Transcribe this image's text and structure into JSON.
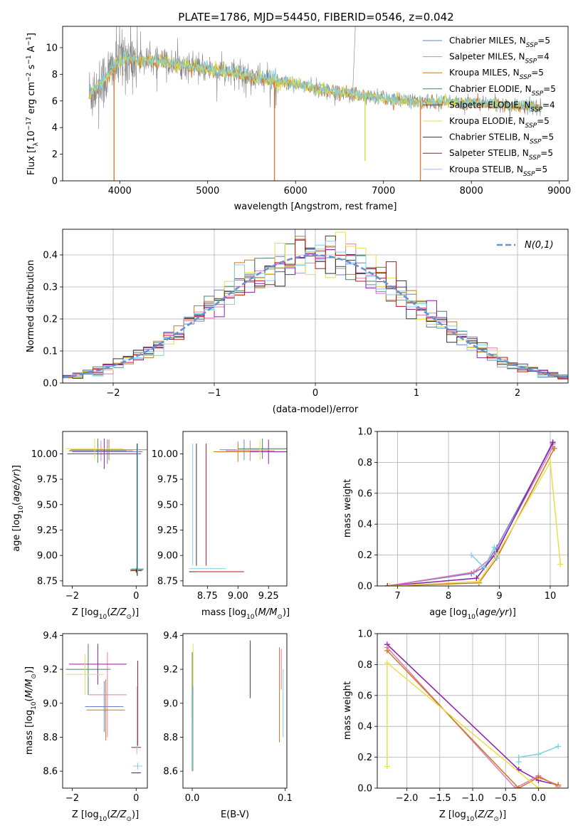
{
  "figure_title": "PLATE=1786, MJD=54450, FIBERID=0546, z=0.042",
  "legend_labels": [
    "Chabrier MILES, N_SSP=5",
    "Salpeter MILES, N_SSP=4",
    "Kroupa MILES, N_SSP=5",
    "Chabrier ELODIE, N_SSP=5",
    "Salpeter ELODIE, N_SSP=4",
    "Kroupa ELODIE, N_SSP=5",
    "Chabrier STELIB, N_SSP=5",
    "Salpeter STELIB, N_SSP=5",
    "Kroupa STELIB, N_SSP=5"
  ],
  "legend_base": [
    "Chabrier MILES, N",
    "Salpeter MILES, N",
    "Kroupa MILES, N",
    "Chabrier ELODIE, N",
    "Salpeter ELODIE, N",
    "Kroupa ELODIE, N",
    "Chabrier STELIB, N",
    "Salpeter STELIB, N",
    "Kroupa STELIB, N"
  ],
  "legend_sub": "SSP",
  "legend_counts": [
    "=5",
    "=4",
    "=5",
    "=5",
    "=4",
    "=5",
    "=5",
    "=5",
    "=5"
  ],
  "model_colors": [
    "#6a7fd3",
    "#e07ab8",
    "#c77a20",
    "#4f7f63",
    "#8b1fa8",
    "#e8e04a",
    "#333333",
    "#b8141a",
    "#7fd0e0"
  ],
  "panel_colors": {
    "data": "#808080",
    "fit_orange": "#e07a3a",
    "fit_cyan": "#7fd0e0",
    "fit_yellow": "#d0e040",
    "normal_curve": "#6a8fd3"
  },
  "chart_data": [
    {
      "type": "line",
      "panel": "spectrum",
      "xlabel": "wavelength [Angstrom, rest frame]",
      "ylabel": "Flux [f_λ 10^-17 erg cm^-2 s^-1 A^-1]",
      "xlim": [
        3350,
        9100
      ],
      "ylim": [
        0,
        11.6
      ],
      "xticks": [
        4000,
        5000,
        6000,
        7000,
        8000,
        9000
      ],
      "yticks": [
        0,
        2,
        4,
        6,
        8,
        10
      ],
      "legend_position": "top-right",
      "continuum": [
        [
          3650,
          6.5
        ],
        [
          3800,
          7.4
        ],
        [
          3950,
          8.6
        ],
        [
          4050,
          9.3
        ],
        [
          4200,
          9.1
        ],
        [
          4500,
          8.9
        ],
        [
          4800,
          8.6
        ],
        [
          5000,
          8.4
        ],
        [
          5300,
          8.1
        ],
        [
          5600,
          7.7
        ],
        [
          5900,
          7.3
        ],
        [
          6200,
          7.0
        ],
        [
          6500,
          6.6
        ],
        [
          6800,
          6.4
        ],
        [
          7100,
          6.1
        ],
        [
          7400,
          6.0
        ],
        [
          7800,
          5.9
        ],
        [
          8200,
          5.8
        ],
        [
          8600,
          5.6
        ],
        [
          8800,
          5.5
        ]
      ],
      "dips": [
        {
          "x": 3935,
          "y": 0.0,
          "series": "fit_orange"
        },
        {
          "x": 5760,
          "y": 0.0,
          "series": "fit_orange"
        },
        {
          "x": 6790,
          "y": 1.5,
          "series": "fit_yellow"
        },
        {
          "x": 7420,
          "y": 0.0,
          "series": "fit_orange"
        }
      ],
      "spike": {
        "x": 6650,
        "y": 11.6
      }
    },
    {
      "type": "line",
      "panel": "residual_histogram",
      "xlabel": "(data-model)/error",
      "ylabel": "Normed distribution",
      "xlim": [
        -2.5,
        2.5
      ],
      "ylim": [
        0,
        0.48
      ],
      "xticks": [
        -2,
        -1,
        0,
        1,
        2
      ],
      "yticks": [
        0.0,
        0.1,
        0.2,
        0.3,
        0.4
      ],
      "grid": true,
      "legend_label": "N(0,1)",
      "legend_position": "top-right",
      "bin_width": 0.1
    },
    {
      "type": "scatter",
      "panel": "age_vs_Z",
      "xlabel": "Z [log10(Z/Z⊙)]",
      "ylabel": "age [log10(age/yr)]",
      "xlim": [
        -2.3,
        0.35
      ],
      "ylim": [
        8.7,
        10.22
      ],
      "xticks": [
        -2,
        0
      ],
      "yticks": [
        8.75,
        9.0,
        9.25,
        9.5,
        9.75,
        10.0
      ],
      "points": [
        {
          "x": -0.9,
          "y": 10.02,
          "xerr": 1.1,
          "yerr": 0.12,
          "color": 0
        },
        {
          "x": -1.1,
          "y": 10.03,
          "xerr": 1.0,
          "yerr": 0.1,
          "color": 1
        },
        {
          "x": -0.85,
          "y": 10.04,
          "xerr": 1.2,
          "yerr": 0.1,
          "color": 2
        },
        {
          "x": -1.2,
          "y": 10.03,
          "xerr": 0.9,
          "yerr": 0.12,
          "color": 3
        },
        {
          "x": -1.0,
          "y": 10.0,
          "xerr": 1.15,
          "yerr": 0.15,
          "color": 4
        },
        {
          "x": -1.3,
          "y": 10.05,
          "xerr": 0.9,
          "yerr": 0.1,
          "color": 5
        },
        {
          "x": 0.02,
          "y": 8.86,
          "xerr": 0.2,
          "yerr": 0.02,
          "color": 6
        },
        {
          "x": 0.0,
          "y": 8.85,
          "xerr": 0.18,
          "yerr": 0.02,
          "color": 7
        },
        {
          "x": 0.05,
          "y": 8.87,
          "xerr": 0.2,
          "yerr": 0.02,
          "color": 8
        },
        {
          "x": 0.03,
          "y": 9.45,
          "xerr": 0.0,
          "yerr": 0.65,
          "color": 6
        },
        {
          "x": 0.05,
          "y": 9.45,
          "xerr": 0.0,
          "yerr": 0.65,
          "color": 8
        }
      ]
    },
    {
      "type": "scatter",
      "panel": "age_vs_mass",
      "xlabel": "mass [log10(M/M⊙)]",
      "ylabel": "",
      "xlim": [
        8.55,
        9.4
      ],
      "ylim": [
        8.7,
        10.22
      ],
      "xticks": [
        8.75,
        9.0,
        9.25
      ],
      "yticks": [
        8.75,
        9.0,
        9.25,
        9.5,
        9.75,
        10.0
      ],
      "points": [
        {
          "x": 9.05,
          "y": 10.04,
          "xerr": 0.2,
          "yerr": 0.1,
          "color": 0
        },
        {
          "x": 9.1,
          "y": 10.03,
          "xerr": 0.2,
          "yerr": 0.1,
          "color": 1
        },
        {
          "x": 9.0,
          "y": 10.02,
          "xerr": 0.2,
          "yerr": 0.1,
          "color": 2
        },
        {
          "x": 9.2,
          "y": 10.05,
          "xerr": 0.2,
          "yerr": 0.1,
          "color": 3
        },
        {
          "x": 9.25,
          "y": 10.02,
          "xerr": 0.15,
          "yerr": 0.12,
          "color": 4
        },
        {
          "x": 9.18,
          "y": 10.04,
          "xerr": 0.2,
          "yerr": 0.1,
          "color": 5
        },
        {
          "x": 8.75,
          "y": 8.84,
          "xerr": 0.15,
          "yerr": 0.0,
          "color": 6
        },
        {
          "x": 8.85,
          "y": 8.84,
          "xerr": 0.2,
          "yerr": 0.0,
          "color": 7
        },
        {
          "x": 8.75,
          "y": 8.87,
          "xerr": 0.15,
          "yerr": 0.0,
          "color": 8
        },
        {
          "x": 8.74,
          "y": 9.5,
          "xerr": 0.0,
          "yerr": 0.6,
          "color": 7
        },
        {
          "x": 8.63,
          "y": 9.5,
          "xerr": 0.0,
          "yerr": 0.6,
          "color": 8
        },
        {
          "x": 8.66,
          "y": 9.5,
          "xerr": 0.0,
          "yerr": 0.6,
          "color": 6
        }
      ]
    },
    {
      "type": "line",
      "panel": "mass_weight_vs_age",
      "xlabel": "age [log10(age/yr)]",
      "ylabel": "mass weight",
      "xlim": [
        6.6,
        10.35
      ],
      "ylim": [
        0,
        1.0
      ],
      "xticks": [
        7,
        8,
        9,
        10
      ],
      "yticks": [
        0.0,
        0.2,
        0.4,
        0.6,
        0.8,
        1.0
      ],
      "grid": true,
      "series": [
        {
          "color": 0,
          "points": [
            [
              6.8,
              0.0
            ],
            [
              8.45,
              0.08
            ],
            [
              8.7,
              0.12
            ],
            [
              8.95,
              0.25
            ],
            [
              10.05,
              0.92
            ]
          ]
        },
        {
          "color": 1,
          "points": [
            [
              6.8,
              0.0
            ],
            [
              8.5,
              0.09
            ],
            [
              8.9,
              0.2
            ],
            [
              10.05,
              0.9
            ]
          ]
        },
        {
          "color": 2,
          "points": [
            [
              6.85,
              0.0
            ],
            [
              8.6,
              0.02
            ],
            [
              8.95,
              0.18
            ],
            [
              10.08,
              0.89
            ]
          ]
        },
        {
          "color": 4,
          "points": [
            [
              6.8,
              0.0
            ],
            [
              8.55,
              0.05
            ],
            [
              8.95,
              0.22
            ],
            [
              10.05,
              0.93
            ]
          ]
        },
        {
          "color": 5,
          "points": [
            [
              6.85,
              0.0
            ],
            [
              8.6,
              0.03
            ],
            [
              8.95,
              0.2
            ],
            [
              10.0,
              0.8
            ],
            [
              10.2,
              0.14
            ]
          ]
        },
        {
          "color": 8,
          "points": [
            [
              8.45,
              0.2
            ],
            [
              8.7,
              0.12
            ],
            [
              8.9,
              0.25
            ],
            [
              8.95,
              0.18
            ]
          ]
        }
      ]
    },
    {
      "type": "scatter",
      "panel": "mass_vs_Z",
      "xlabel": "Z [log10(Z/Z⊙)]",
      "ylabel": "mass [log10(M/M⊙)]",
      "xlim": [
        -2.3,
        0.35
      ],
      "ylim": [
        8.5,
        9.41
      ],
      "xticks": [
        -2,
        0
      ],
      "yticks": [
        8.6,
        8.8,
        9.0,
        9.2,
        9.4
      ],
      "points": [
        {
          "x": -1.0,
          "y": 8.98,
          "xerr": 0.6,
          "yerr": 0.15,
          "color": 0
        },
        {
          "x": -0.9,
          "y": 9.05,
          "xerr": 0.6,
          "yerr": 0.25,
          "color": 1
        },
        {
          "x": -0.95,
          "y": 8.96,
          "xerr": 0.6,
          "yerr": 0.18,
          "color": 2
        },
        {
          "x": -1.5,
          "y": 9.2,
          "xerr": 0.7,
          "yerr": 0.15,
          "color": 3
        },
        {
          "x": -1.2,
          "y": 9.23,
          "xerr": 0.9,
          "yerr": 0.12,
          "color": 4
        },
        {
          "x": -1.6,
          "y": 9.17,
          "xerr": 0.6,
          "yerr": 0.12,
          "color": 5
        },
        {
          "x": 0.0,
          "y": 8.59,
          "xerr": 0.15,
          "yerr": 0.0,
          "color": 6
        },
        {
          "x": 0.0,
          "y": 8.74,
          "xerr": 0.15,
          "yerr": 0.0,
          "color": 7
        },
        {
          "x": 0.05,
          "y": 8.63,
          "xerr": 0.15,
          "yerr": 0.02,
          "color": 8
        },
        {
          "x": 0.05,
          "y": 9.0,
          "xerr": 0.0,
          "yerr": 0.25,
          "color": 7
        },
        {
          "x": 0.02,
          "y": 8.9,
          "xerr": 0.0,
          "yerr": 0.2,
          "color": 8
        }
      ]
    },
    {
      "type": "scatter",
      "panel": "mass_vs_EBV",
      "xlabel": "E(B-V)",
      "ylabel": "",
      "xlim": [
        -0.01,
        0.102
      ],
      "ylim": [
        8.5,
        9.41
      ],
      "xticks": [
        0.0,
        0.1
      ],
      "yticks": [
        8.6,
        8.8,
        9.0,
        9.2,
        9.4
      ],
      "points": [
        {
          "x": 0.0,
          "y": 9.1,
          "yerr": 0.2,
          "color": 2
        },
        {
          "x": 0.0,
          "y": 8.95,
          "yerr": 0.35,
          "color": 3
        },
        {
          "x": 0.001,
          "y": 9.2,
          "yerr": 0.15,
          "color": 5
        },
        {
          "x": 0.001,
          "y": 8.85,
          "yerr": 0.25,
          "color": 8
        },
        {
          "x": 0.0625,
          "y": 9.2,
          "yerr": 0.17,
          "color": 4
        },
        {
          "x": 0.094,
          "y": 9.05,
          "yerr": 0.28,
          "color": 2
        },
        {
          "x": 0.096,
          "y": 9.2,
          "yerr": 0.12,
          "color": 1
        },
        {
          "x": 0.098,
          "y": 9.0,
          "yerr": 0.2,
          "color": 8
        }
      ]
    },
    {
      "type": "line",
      "panel": "mass_weight_vs_Z",
      "xlabel": "Z [log10(Z/Z⊙)]",
      "ylabel": "mass weight",
      "xlim": [
        -2.45,
        0.45
      ],
      "ylim": [
        0,
        1.0
      ],
      "xticks": [
        -2.0,
        -1.5,
        -1.0,
        -0.5,
        0.0
      ],
      "yticks": [
        0.0,
        0.2,
        0.4,
        0.6,
        0.8,
        1.0
      ],
      "grid": true,
      "series": [
        {
          "color": 4,
          "points": [
            [
              -2.3,
              0.93
            ],
            [
              -0.3,
              0.12
            ],
            [
              0.0,
              0.05
            ],
            [
              0.3,
              0.02
            ]
          ]
        },
        {
          "color": 1,
          "points": [
            [
              -2.3,
              0.91
            ],
            [
              -0.35,
              0.0
            ],
            [
              0.0,
              0.08
            ],
            [
              0.3,
              0.01
            ]
          ]
        },
        {
          "color": 2,
          "points": [
            [
              -2.3,
              0.89
            ],
            [
              -0.3,
              0.0
            ],
            [
              0.0,
              0.07
            ],
            [
              0.3,
              0.02
            ]
          ]
        },
        {
          "color": 5,
          "points": [
            [
              -2.3,
              0.81
            ],
            [
              0.0,
              0.0
            ],
            [
              0.3,
              0.0
            ]
          ]
        },
        {
          "color": 5,
          "points": [
            [
              -2.3,
              0.14
            ],
            [
              -2.3,
              0.8
            ]
          ]
        },
        {
          "color": 8,
          "points": [
            [
              -0.3,
              0.17
            ],
            [
              -0.3,
              0.2
            ],
            [
              0.0,
              0.22
            ],
            [
              0.3,
              0.27
            ]
          ]
        }
      ]
    }
  ]
}
